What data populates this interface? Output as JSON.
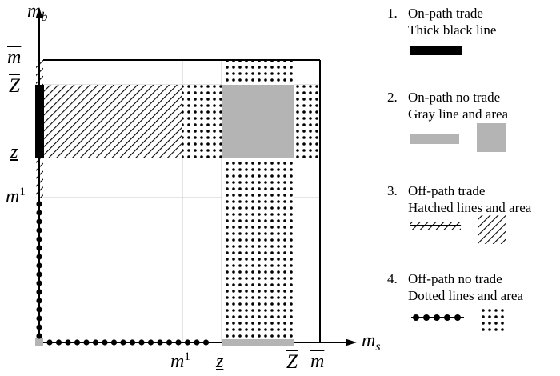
{
  "axes": {
    "y_label_base": "m",
    "y_label_sub": "b",
    "x_label_base": "m",
    "x_label_sub": "s"
  },
  "y_ticks": {
    "m_bar": "m",
    "Z_bar": "Z",
    "z_under": "z",
    "m1_base": "m",
    "m1_sup": "1"
  },
  "x_ticks": {
    "m1_base": "m",
    "m1_sup": "1",
    "z_under": "z",
    "Z_bar": "Z",
    "m_bar": "m"
  },
  "legend": {
    "items": [
      {
        "number": "1.",
        "title": "On-path trade",
        "desc": "Thick black line"
      },
      {
        "number": "2.",
        "title": "On-path no trade",
        "desc": "Gray line and area"
      },
      {
        "number": "3.",
        "title": "Off-path trade",
        "desc": "Hatched lines and area"
      },
      {
        "number": "4.",
        "title": "Off-path no trade",
        "desc": "Dotted lines and area"
      }
    ]
  },
  "colors": {
    "gray_fill": "#b4b4b4",
    "black": "#000000",
    "grid": "#c8c8c8"
  }
}
